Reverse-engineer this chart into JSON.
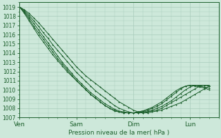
{
  "title": "Pression niveau de la mer( hPa )",
  "xtick_labels": [
    "Ven",
    "Sam",
    "Dim",
    "Lun"
  ],
  "xtick_positions": [
    0,
    24,
    48,
    72
  ],
  "ylim": [
    1007,
    1019.5
  ],
  "yticks": [
    1007,
    1008,
    1009,
    1010,
    1011,
    1012,
    1013,
    1014,
    1015,
    1016,
    1017,
    1018,
    1019
  ],
  "xlim": [
    0,
    84
  ],
  "background_color": "#cde8da",
  "grid_color": "#a8ccbb",
  "line_color": "#1a5e2a",
  "marker_color": "#1a5e2a",
  "series": [
    [
      1019.0,
      1018.7,
      1018.3,
      1017.8,
      1017.3,
      1016.7,
      1016.1,
      1015.5,
      1014.9,
      1014.3,
      1013.7,
      1013.1,
      1012.5,
      1012.0,
      1011.5,
      1011.1,
      1010.7,
      1010.3,
      1009.9,
      1009.5,
      1009.1,
      1008.7,
      1008.4,
      1008.1,
      1007.8,
      1007.6,
      1007.5,
      1007.5,
      1007.6,
      1007.7,
      1007.8,
      1008.0,
      1008.2,
      1008.4,
      1008.6,
      1008.9,
      1009.2,
      1009.5,
      1009.8,
      1010.1,
      1010.4
    ],
    [
      1019.0,
      1018.6,
      1018.1,
      1017.5,
      1016.9,
      1016.2,
      1015.6,
      1014.9,
      1014.3,
      1013.7,
      1013.1,
      1012.5,
      1011.9,
      1011.4,
      1010.9,
      1010.4,
      1009.9,
      1009.5,
      1009.1,
      1008.7,
      1008.3,
      1008.0,
      1007.8,
      1007.6,
      1007.5,
      1007.5,
      1007.5,
      1007.6,
      1007.7,
      1007.8,
      1008.0,
      1008.3,
      1008.6,
      1008.9,
      1009.2,
      1009.5,
      1009.8,
      1010.1,
      1010.4,
      1010.5,
      1010.5
    ],
    [
      1019.0,
      1018.5,
      1017.9,
      1017.2,
      1016.5,
      1015.8,
      1015.1,
      1014.4,
      1013.7,
      1013.0,
      1012.4,
      1011.8,
      1011.2,
      1010.7,
      1010.2,
      1009.7,
      1009.3,
      1008.9,
      1008.5,
      1008.2,
      1007.9,
      1007.7,
      1007.6,
      1007.5,
      1007.5,
      1007.5,
      1007.6,
      1007.7,
      1007.8,
      1008.0,
      1008.2,
      1008.5,
      1008.8,
      1009.2,
      1009.6,
      1010.0,
      1010.3,
      1010.5,
      1010.5,
      1010.5,
      1010.4
    ],
    [
      1019.0,
      1018.4,
      1017.7,
      1016.9,
      1016.2,
      1015.5,
      1014.8,
      1014.1,
      1013.4,
      1012.8,
      1012.2,
      1011.6,
      1011.0,
      1010.5,
      1010.0,
      1009.5,
      1009.1,
      1008.7,
      1008.3,
      1008.0,
      1007.7,
      1007.6,
      1007.5,
      1007.5,
      1007.5,
      1007.6,
      1007.7,
      1007.8,
      1008.0,
      1008.2,
      1008.5,
      1008.9,
      1009.3,
      1009.7,
      1010.1,
      1010.4,
      1010.5,
      1010.5,
      1010.4,
      1010.3,
      1010.2
    ],
    [
      1019.0,
      1018.3,
      1017.5,
      1016.7,
      1015.9,
      1015.2,
      1014.5,
      1013.8,
      1013.2,
      1012.6,
      1012.0,
      1011.5,
      1011.0,
      1010.5,
      1010.0,
      1009.5,
      1009.1,
      1008.7,
      1008.3,
      1008.0,
      1007.8,
      1007.6,
      1007.5,
      1007.5,
      1007.5,
      1007.6,
      1007.7,
      1007.9,
      1008.1,
      1008.4,
      1008.7,
      1009.1,
      1009.5,
      1009.9,
      1010.2,
      1010.4,
      1010.5,
      1010.4,
      1010.3,
      1010.2,
      1010.0
    ]
  ],
  "x_values": [
    0,
    2,
    4,
    6,
    8,
    10,
    12,
    14,
    16,
    18,
    20,
    22,
    24,
    26,
    28,
    30,
    32,
    34,
    36,
    38,
    40,
    42,
    44,
    46,
    48,
    50,
    52,
    54,
    56,
    58,
    60,
    62,
    64,
    66,
    68,
    70,
    72,
    74,
    76,
    78,
    80
  ],
  "figsize": [
    3.2,
    2.0
  ],
  "dpi": 100
}
